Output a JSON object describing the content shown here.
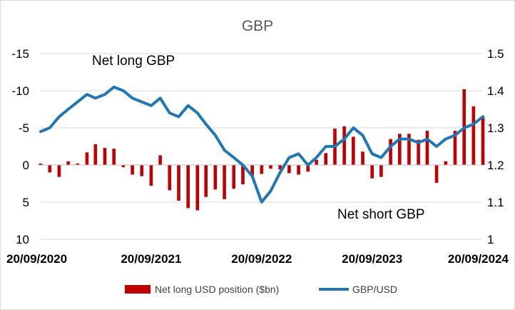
{
  "chart_data": {
    "type": "bar+line",
    "title": "GBP",
    "annotations": [
      "Net long GBP",
      "Net short GBP"
    ],
    "x_axis": {
      "labels": [
        "20/09/2020",
        "20/09/2021",
        "20/09/2022",
        "20/09/2023",
        "20/09/2024"
      ],
      "start": "20/09/2020",
      "end": "20/09/2024"
    },
    "left_axis": {
      "reversed": true,
      "range": [
        -15,
        10
      ],
      "ticks": [
        "-15",
        "-10",
        "-5",
        "0",
        "5",
        "10"
      ],
      "tick_values": [
        -15,
        -10,
        -5,
        0,
        5,
        10
      ]
    },
    "right_axis": {
      "range": [
        1,
        1.5
      ],
      "ticks": [
        "1.5",
        "1.4",
        "1.3",
        "1.2",
        "1.1",
        "1"
      ],
      "tick_values": [
        1.5,
        1.4,
        1.3,
        1.2,
        1.1,
        1.0
      ]
    },
    "series": [
      {
        "name": "Net long USD position ($bn)",
        "type": "bar",
        "axis": "left",
        "color": "#c00000",
        "x": [
          "2020-09-20",
          "2020-10-20",
          "2020-11-20",
          "2020-12-20",
          "2021-01-20",
          "2021-02-20",
          "2021-03-20",
          "2021-04-20",
          "2021-05-20",
          "2021-06-20",
          "2021-07-20",
          "2021-08-20",
          "2021-09-20",
          "2021-10-20",
          "2021-11-20",
          "2021-12-20",
          "2022-01-20",
          "2022-02-20",
          "2022-03-20",
          "2022-04-20",
          "2022-05-20",
          "2022-06-20",
          "2022-07-20",
          "2022-08-20",
          "2022-09-20",
          "2022-10-20",
          "2022-11-20",
          "2022-12-20",
          "2023-01-20",
          "2023-02-20",
          "2023-03-20",
          "2023-04-20",
          "2023-05-20",
          "2023-06-20",
          "2023-07-20",
          "2023-08-20",
          "2023-09-20",
          "2023-10-20",
          "2023-11-20",
          "2023-12-20",
          "2024-01-20",
          "2024-02-20",
          "2024-03-20",
          "2024-04-20",
          "2024-05-20",
          "2024-06-20",
          "2024-07-20",
          "2024-08-20",
          "2024-09-20"
        ],
        "values": [
          -0.2,
          1.0,
          1.6,
          -0.5,
          -0.2,
          -1.7,
          -2.8,
          -2.3,
          -2.2,
          0.3,
          1.3,
          1.5,
          2.8,
          -1.3,
          3.4,
          4.8,
          5.8,
          6.1,
          4.3,
          3.3,
          4.6,
          3.2,
          2.6,
          1.6,
          1.2,
          0.5,
          0.6,
          1.1,
          1.3,
          0.9,
          -0.7,
          -1.6,
          -4.9,
          -5.2,
          -3.8,
          -1.8,
          1.8,
          1.6,
          -3.5,
          -4.2,
          -4.2,
          -3.4,
          -4.6,
          2.4,
          -0.5,
          -4.6,
          -10.2,
          -7.9,
          -6.5
        ]
      },
      {
        "name": "GBP/USD",
        "type": "line",
        "axis": "right",
        "color": "#1f77b4",
        "x": [
          "2020-09-20",
          "2020-10-20",
          "2020-11-20",
          "2020-12-20",
          "2021-01-20",
          "2021-02-20",
          "2021-03-20",
          "2021-04-20",
          "2021-05-20",
          "2021-06-20",
          "2021-07-20",
          "2021-08-20",
          "2021-09-20",
          "2021-10-20",
          "2021-11-20",
          "2021-12-20",
          "2022-01-20",
          "2022-02-20",
          "2022-03-20",
          "2022-04-20",
          "2022-05-20",
          "2022-06-20",
          "2022-07-20",
          "2022-08-20",
          "2022-09-20",
          "2022-10-20",
          "2022-11-20",
          "2022-12-20",
          "2023-01-20",
          "2023-02-20",
          "2023-03-20",
          "2023-04-20",
          "2023-05-20",
          "2023-06-20",
          "2023-07-20",
          "2023-08-20",
          "2023-09-20",
          "2023-10-20",
          "2023-11-20",
          "2023-12-20",
          "2024-01-20",
          "2024-02-20",
          "2024-03-20",
          "2024-04-20",
          "2024-05-20",
          "2024-06-20",
          "2024-07-20",
          "2024-08-20",
          "2024-09-20"
        ],
        "values": [
          1.29,
          1.3,
          1.33,
          1.35,
          1.37,
          1.39,
          1.38,
          1.39,
          1.41,
          1.4,
          1.38,
          1.37,
          1.36,
          1.38,
          1.34,
          1.33,
          1.36,
          1.34,
          1.31,
          1.28,
          1.24,
          1.22,
          1.2,
          1.17,
          1.1,
          1.13,
          1.18,
          1.22,
          1.23,
          1.2,
          1.22,
          1.25,
          1.25,
          1.27,
          1.3,
          1.28,
          1.23,
          1.22,
          1.25,
          1.27,
          1.27,
          1.26,
          1.27,
          1.25,
          1.27,
          1.28,
          1.3,
          1.31,
          1.33
        ]
      }
    ],
    "grid": true,
    "legend": "bottom"
  }
}
